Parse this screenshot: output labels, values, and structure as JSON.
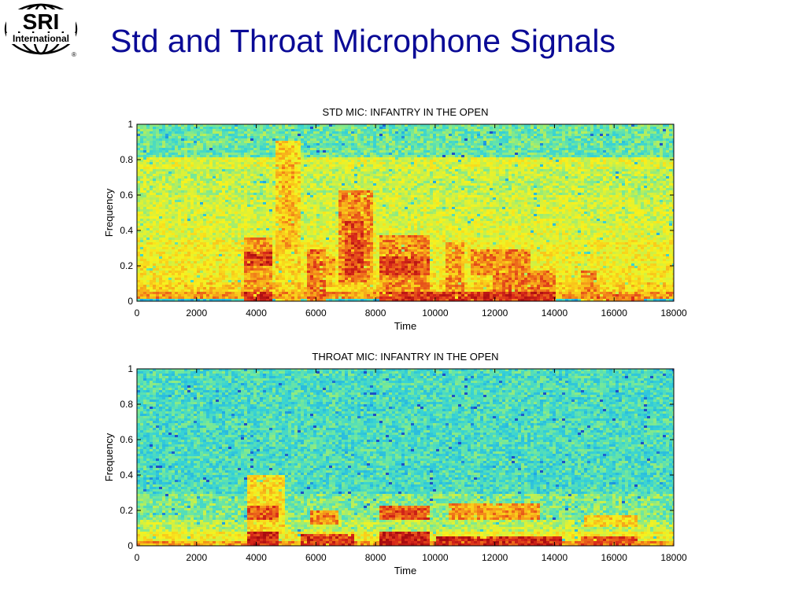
{
  "slide": {
    "title": "Std and Throat Microphone Signals"
  },
  "logo": {
    "text_top": "SRI",
    "text_bottom": "International",
    "mark": "®"
  },
  "colors": {
    "title": "#0a0a96",
    "colormap": [
      "#1e4fc8",
      "#1fa6e6",
      "#36d2d6",
      "#6ee7a0",
      "#c8f04a",
      "#f7f21e",
      "#f9c21a",
      "#f0761a",
      "#d8281a",
      "#a80c10"
    ]
  },
  "chart_data": [
    {
      "type": "heatmap",
      "title": "STD MIC:  INFANTRY IN THE OPEN",
      "xlabel": "Time",
      "ylabel": "Frequency",
      "xlim": [
        0,
        18000
      ],
      "ylim": [
        0,
        1
      ],
      "xticks": [
        "0",
        "2000",
        "4000",
        "6000",
        "8000",
        "10000",
        "12000",
        "14000",
        "16000",
        "18000"
      ],
      "yticks": [
        "0",
        "0.2",
        "0.4",
        "0.6",
        "0.8",
        "1"
      ],
      "background_level": 0.42,
      "bands": [
        {
          "y": [
            0.0,
            0.02
          ],
          "level": 0.2
        },
        {
          "y": [
            0.02,
            0.05
          ],
          "level": 0.72
        },
        {
          "y": [
            0.05,
            0.1
          ],
          "level": 0.62
        },
        {
          "y": [
            0.1,
            0.2
          ],
          "level": 0.57
        },
        {
          "y": [
            0.2,
            0.35
          ],
          "level": 0.55
        },
        {
          "y": [
            0.35,
            0.45
          ],
          "level": 0.5
        },
        {
          "y": [
            0.45,
            0.6
          ],
          "level": 0.48
        },
        {
          "y": [
            0.6,
            0.75
          ],
          "level": 0.45
        },
        {
          "y": [
            0.75,
            0.82
          ],
          "level": 0.5
        },
        {
          "y": [
            0.82,
            1.0
          ],
          "level": 0.32
        }
      ],
      "events": [
        {
          "x": [
            3600,
            4500
          ],
          "y": [
            0.0,
            0.05
          ],
          "level": 0.9
        },
        {
          "x": [
            3600,
            4500
          ],
          "y": [
            0.05,
            0.36
          ],
          "level": 0.72
        },
        {
          "x": [
            3600,
            4500
          ],
          "y": [
            0.2,
            0.28
          ],
          "level": 0.88
        },
        {
          "x": [
            4600,
            5500
          ],
          "y": [
            0.0,
            0.9
          ],
          "level": 0.62
        },
        {
          "x": [
            4900,
            5300
          ],
          "y": [
            0.3,
            0.78
          ],
          "level": 0.68
        },
        {
          "x": [
            5700,
            6300
          ],
          "y": [
            0.0,
            0.3
          ],
          "level": 0.78
        },
        {
          "x": [
            6100,
            6600
          ],
          "y": [
            0.15,
            0.25
          ],
          "level": 0.72
        },
        {
          "x": [
            6800,
            7900
          ],
          "y": [
            0.1,
            0.62
          ],
          "level": 0.74
        },
        {
          "x": [
            7000,
            7600
          ],
          "y": [
            0.15,
            0.45
          ],
          "level": 0.85
        },
        {
          "x": [
            8100,
            9800
          ],
          "y": [
            0.05,
            0.37
          ],
          "level": 0.74
        },
        {
          "x": [
            8100,
            9800
          ],
          "y": [
            0.15,
            0.25
          ],
          "level": 0.85
        },
        {
          "x": [
            10300,
            11000
          ],
          "y": [
            0.0,
            0.33
          ],
          "level": 0.72
        },
        {
          "x": [
            11200,
            13200
          ],
          "y": [
            0.15,
            0.3
          ],
          "level": 0.74
        },
        {
          "x": [
            11900,
            14000
          ],
          "y": [
            0.05,
            0.18
          ],
          "level": 0.76
        },
        {
          "x": [
            8100,
            14000
          ],
          "y": [
            0.0,
            0.05
          ],
          "level": 0.88
        },
        {
          "x": [
            14900,
            15400
          ],
          "y": [
            0.0,
            0.18
          ],
          "level": 0.74
        },
        {
          "x": [
            15400,
            17000
          ],
          "y": [
            0.0,
            0.04
          ],
          "level": 0.78
        }
      ]
    },
    {
      "type": "heatmap",
      "title": "THROAT MIC:  INFANTRY IN THE OPEN",
      "xlabel": "Time",
      "ylabel": "Frequency",
      "xlim": [
        0,
        18000
      ],
      "ylim": [
        0,
        1
      ],
      "xticks": [
        "0",
        "2000",
        "4000",
        "6000",
        "8000",
        "10000",
        "12000",
        "14000",
        "16000",
        "18000"
      ],
      "yticks": [
        "0",
        "0.2",
        "0.4",
        "0.6",
        "0.8",
        "1"
      ],
      "background_level": 0.3,
      "bands": [
        {
          "y": [
            0.0,
            0.03
          ],
          "level": 0.72
        },
        {
          "y": [
            0.03,
            0.08
          ],
          "level": 0.55
        },
        {
          "y": [
            0.08,
            0.15
          ],
          "level": 0.44
        },
        {
          "y": [
            0.15,
            0.3
          ],
          "level": 0.35
        },
        {
          "y": [
            0.3,
            1.0
          ],
          "level": 0.27
        }
      ],
      "events": [
        {
          "x": [
            0,
            300
          ],
          "y": [
            0.5,
            1.0
          ],
          "level": 0.14
        },
        {
          "x": [
            3700,
            4700
          ],
          "y": [
            0.0,
            0.08
          ],
          "level": 0.92
        },
        {
          "x": [
            3700,
            4700
          ],
          "y": [
            0.15,
            0.22
          ],
          "level": 0.82
        },
        {
          "x": [
            3700,
            5000
          ],
          "y": [
            0.08,
            0.4
          ],
          "level": 0.6
        },
        {
          "x": [
            5500,
            7300
          ],
          "y": [
            0.0,
            0.07
          ],
          "level": 0.88
        },
        {
          "x": [
            5800,
            6800
          ],
          "y": [
            0.12,
            0.2
          ],
          "level": 0.74
        },
        {
          "x": [
            8100,
            9800
          ],
          "y": [
            0.0,
            0.08
          ],
          "level": 0.92
        },
        {
          "x": [
            8100,
            9800
          ],
          "y": [
            0.15,
            0.22
          ],
          "level": 0.82
        },
        {
          "x": [
            10000,
            14200
          ],
          "y": [
            0.0,
            0.06
          ],
          "level": 0.9
        },
        {
          "x": [
            10500,
            13500
          ],
          "y": [
            0.15,
            0.24
          ],
          "level": 0.72
        },
        {
          "x": [
            14900,
            16800
          ],
          "y": [
            0.0,
            0.06
          ],
          "level": 0.82
        },
        {
          "x": [
            15000,
            16800
          ],
          "y": [
            0.1,
            0.18
          ],
          "level": 0.62
        }
      ]
    }
  ]
}
